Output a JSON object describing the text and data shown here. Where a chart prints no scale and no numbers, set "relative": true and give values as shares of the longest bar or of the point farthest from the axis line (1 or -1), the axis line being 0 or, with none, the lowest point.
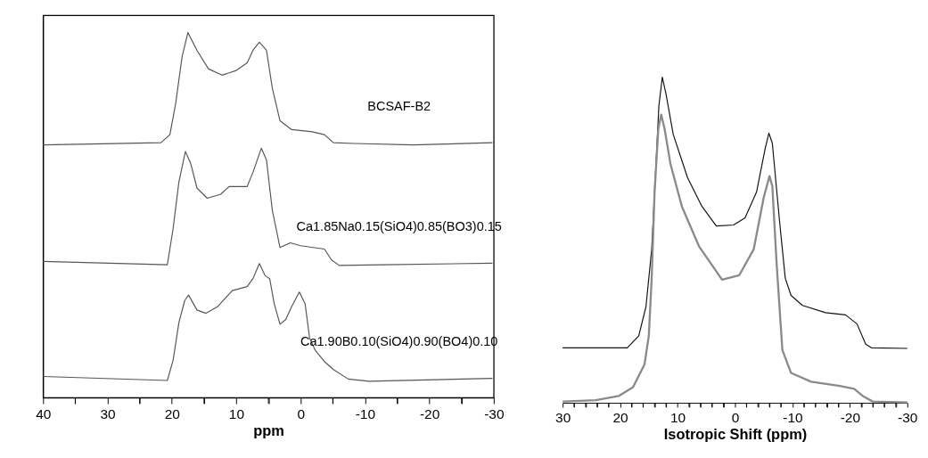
{
  "chart_data": [
    {
      "type": "line",
      "relative": true,
      "xlabel": "ppm",
      "tick_labels": "x",
      "grid": false,
      "legend": false,
      "xlim": [
        40,
        -30
      ],
      "xticks": [
        40,
        {
          "value": 35,
          "label": null
        },
        30,
        {
          "value": 25,
          "label": null
        },
        20,
        {
          "value": 15,
          "label": null
        },
        10,
        {
          "value": 5,
          "label": null
        },
        0,
        {
          "value": -5,
          "label": null
        },
        -10,
        {
          "value": -15,
          "label": null
        },
        -20,
        {
          "value": -25,
          "label": null
        },
        -30
      ],
      "series": [
        {
          "name": "BCSAF-B2",
          "color": "#555555",
          "x": [
            40,
            21.7,
            20.3,
            19.4,
            18.4,
            17.5,
            16.1,
            14.3,
            12.2,
            10.1,
            8.3,
            7.4,
            6.4,
            5.3,
            4.4,
            3.2,
            1.4,
            -1.8,
            -3.7,
            -5.1,
            -8.3,
            -17.5,
            -29.8
          ],
          "values": [
            0.692,
            0.698,
            0.72,
            0.806,
            0.934,
            1,
            0.951,
            0.9,
            0.883,
            0.895,
            0.917,
            0.951,
            0.973,
            0.951,
            0.848,
            0.758,
            0.734,
            0.728,
            0.72,
            0.698,
            0.696,
            0.692,
            0.698
          ]
        },
        {
          "name": "Ca1.85Na0.15(SiO4)0.85(BO3)0.15",
          "color": "#555555",
          "x": [
            40,
            20.7,
            19.8,
            18.9,
            17.9,
            17.1,
            16.1,
            14.5,
            12.4,
            11.1,
            8.3,
            7.4,
            6.1,
            5.3,
            4.4,
            3.2,
            1.6,
            0,
            -3.7,
            -4.8,
            -6,
            -12.9,
            -29.8
          ],
          "values": [
            0.373,
            0.364,
            0.463,
            0.591,
            0.674,
            0.643,
            0.574,
            0.546,
            0.557,
            0.578,
            0.578,
            0.617,
            0.683,
            0.651,
            0.514,
            0.411,
            0.424,
            0.416,
            0.407,
            0.377,
            0.362,
            0.364,
            0.368
          ]
        },
        {
          "name": "Ca1.90B0.10(SiO4)0.90(BO4)0.10",
          "color": "#555555",
          "x": [
            40,
            20.7,
            19.8,
            18.9,
            18,
            17.4,
            16.1,
            14.7,
            12.9,
            10.6,
            8.3,
            7.4,
            6.4,
            5.5,
            4.8,
            4.1,
            3.2,
            2.3,
            1.4,
            0.2,
            -0.7,
            -1.4,
            -2.3,
            -3.7,
            -5.1,
            -7.4,
            -10.6,
            -29.8
          ],
          "values": [
            0.058,
            0.047,
            0.103,
            0.206,
            0.266,
            0.281,
            0.24,
            0.231,
            0.249,
            0.293,
            0.304,
            0.326,
            0.367,
            0.334,
            0.326,
            0.257,
            0.201,
            0.214,
            0.249,
            0.289,
            0.257,
            0.163,
            0.129,
            0.099,
            0.077,
            0.051,
            0.045,
            0.053
          ]
        }
      ]
    },
    {
      "type": "line",
      "relative": true,
      "xlabel": "Isotropic Shift (ppm)",
      "tick_labels": "x",
      "grid": false,
      "legend": false,
      "xlim": [
        30,
        -30
      ],
      "xticks": [
        30,
        {
          "value": 28,
          "label": null
        },
        {
          "value": 26,
          "label": null
        },
        {
          "value": 24,
          "label": null
        },
        {
          "value": 22,
          "label": null
        },
        20,
        {
          "value": 18,
          "label": null
        },
        {
          "value": 16,
          "label": null
        },
        {
          "value": 14,
          "label": null
        },
        {
          "value": 12,
          "label": null
        },
        10,
        {
          "value": 8,
          "label": null
        },
        {
          "value": 6,
          "label": null
        },
        {
          "value": 4,
          "label": null
        },
        {
          "value": 2,
          "label": null
        },
        0,
        {
          "value": -2,
          "label": null
        },
        {
          "value": -4,
          "label": null
        },
        {
          "value": -6,
          "label": null
        },
        {
          "value": -8,
          "label": null
        },
        -10,
        {
          "value": -12,
          "label": null
        },
        {
          "value": -14,
          "label": null
        },
        {
          "value": -16,
          "label": null
        },
        {
          "value": -18,
          "label": null
        },
        -20,
        {
          "value": -22,
          "label": null
        },
        {
          "value": -24,
          "label": null
        },
        {
          "value": -26,
          "label": null
        },
        {
          "value": -28,
          "label": null
        },
        -30
      ],
      "series": [
        {
          "color": "#111111",
          "x": [
            30,
            18.75,
            16.75,
            15.5,
            14.5,
            13.75,
            13.25,
            12.65,
            12,
            10.75,
            8.25,
            5.75,
            3.25,
            0.25,
            -1.75,
            -3.75,
            -5.25,
            -5.9,
            -6.5,
            -7.75,
            -8.75,
            -9.75,
            -11.75,
            -15.75,
            -19.25,
            -21.25,
            -22.75,
            -23.75,
            -30
          ],
          "values": [
            0.169,
            0.169,
            0.206,
            0.295,
            0.471,
            0.735,
            0.912,
            1,
            0.947,
            0.824,
            0.691,
            0.603,
            0.543,
            0.546,
            0.568,
            0.647,
            0.78,
            0.828,
            0.797,
            0.559,
            0.383,
            0.33,
            0.299,
            0.277,
            0.27,
            0.242,
            0.18,
            0.169,
            0.167
          ]
        },
        {
          "color": "#8a8a8a",
          "x": [
            30,
            24.25,
            20.25,
            17.75,
            15.75,
            15,
            14.5,
            14,
            13.35,
            12.85,
            12.25,
            11.25,
            9.25,
            6.25,
            2.25,
            -0.75,
            -3.25,
            -5,
            -6,
            -6.5,
            -7.25,
            -8.25,
            -9.75,
            -13.25,
            -18.25,
            -20.75,
            -22.25,
            -24,
            -30
          ],
          "values": [
            0.004,
            0.008,
            0.021,
            0.048,
            0.118,
            0.206,
            0.383,
            0.647,
            0.841,
            0.885,
            0.841,
            0.735,
            0.603,
            0.48,
            0.378,
            0.392,
            0.471,
            0.63,
            0.696,
            0.665,
            0.427,
            0.162,
            0.092,
            0.065,
            0.052,
            0.043,
            0.021,
            0.004,
            0.001
          ]
        }
      ]
    }
  ]
}
